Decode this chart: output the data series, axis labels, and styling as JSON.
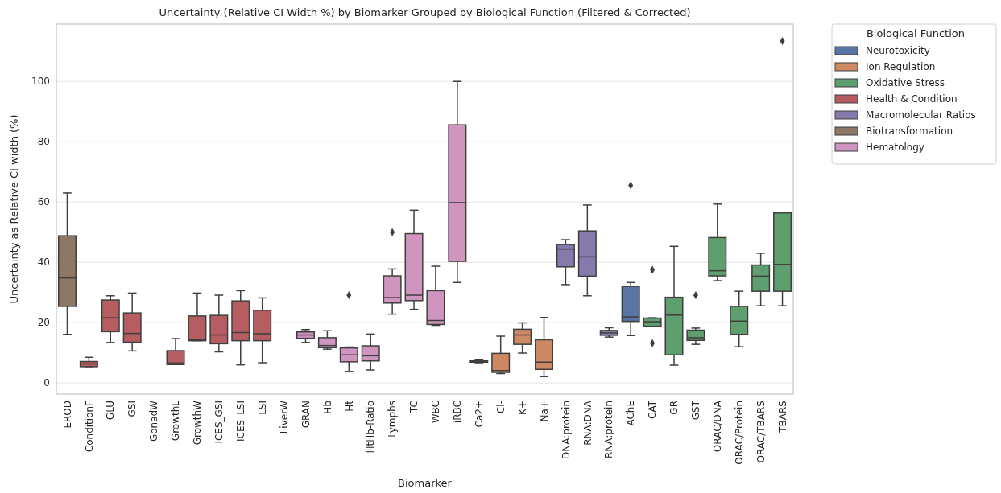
{
  "chart_data": {
    "type": "box",
    "title": "Uncertainty (Relative CI Width %) by Biomarker Grouped by Biological Function (Filtered & Corrected)",
    "xlabel": "Biomarker",
    "ylabel": "Uncertainty as Relative CI width (%)",
    "legend_title": "Biological Function",
    "legend": "top right",
    "grid": "y",
    "marker": "diamond",
    "categories": [
      "EROD",
      "ConditionF",
      "GLU",
      "GSI",
      "GonadW",
      "GrowthL",
      "GrowthW",
      "ICES_GSI",
      "ICES_LSI",
      "LSI",
      "LiverW",
      "GRAN",
      "Hb",
      "Ht",
      "HtHb-Ratio",
      "Lymphs",
      "TC",
      "WBC",
      "iRBC",
      "Ca2+",
      "Cl-",
      "K+",
      "Na+",
      "DNA:protein",
      "RNA:DNA",
      "RNA:protein",
      "AChE",
      "CAT",
      "GR",
      "GST",
      "ORAC/DNA",
      "ORAC/Protein",
      "ORAC/TBARS",
      "TBARS"
    ],
    "ylim": [
      -3.7,
      119
    ],
    "yticks": [
      0,
      20,
      40,
      60,
      80,
      100
    ],
    "series": [
      {
        "name": "Neurotoxicity",
        "color": "#5975a4",
        "boxes": [
          null,
          null,
          null,
          null,
          null,
          null,
          null,
          null,
          null,
          null,
          null,
          null,
          null,
          null,
          null,
          null,
          null,
          null,
          null,
          null,
          null,
          null,
          null,
          null,
          null,
          null,
          {
            "low": 15.7,
            "q1": 20.4,
            "median": 21.9,
            "q3": 32.0,
            "high": 33.3,
            "outliers": [
              65.5
            ]
          },
          null,
          null,
          null,
          null,
          null,
          null,
          null
        ]
      },
      {
        "name": "Ion Regulation",
        "color": "#cc8963",
        "boxes": [
          null,
          null,
          null,
          null,
          null,
          null,
          null,
          null,
          null,
          null,
          null,
          null,
          null,
          null,
          null,
          null,
          null,
          null,
          null,
          {
            "low": 6.7,
            "q1": 6.9,
            "median": 7.1,
            "q3": 7.3,
            "high": 7.6
          },
          {
            "low": 3.1,
            "q1": 3.5,
            "median": 4.1,
            "q3": 9.8,
            "high": 15.5
          },
          {
            "low": 9.9,
            "q1": 12.8,
            "median": 15.9,
            "q3": 17.8,
            "high": 19.9
          },
          {
            "low": 2.1,
            "q1": 4.5,
            "median": 6.9,
            "q3": 14.3,
            "high": 21.7
          },
          null,
          null,
          null,
          null,
          null,
          null,
          null,
          null,
          null,
          null,
          null
        ]
      },
      {
        "name": "Oxidative Stress",
        "color": "#5f9e6e",
        "boxes": [
          null,
          null,
          null,
          null,
          null,
          null,
          null,
          null,
          null,
          null,
          null,
          null,
          null,
          null,
          null,
          null,
          null,
          null,
          null,
          null,
          null,
          null,
          null,
          null,
          null,
          null,
          null,
          {
            "low": 18.8,
            "q1": 18.8,
            "median": 20.3,
            "q3": 21.5,
            "high": 21.6,
            "outliers": [
              37.5,
              13.2
            ]
          },
          {
            "low": 5.9,
            "q1": 9.3,
            "median": 22.5,
            "q3": 28.4,
            "high": 45.3
          },
          {
            "low": 12.8,
            "q1": 14.1,
            "median": 15.0,
            "q3": 17.5,
            "high": 18.2,
            "outliers": [
              29.1
            ]
          },
          {
            "low": 33.9,
            "q1": 35.5,
            "median": 37.2,
            "q3": 48.2,
            "high": 59.3
          },
          {
            "low": 12.0,
            "q1": 16.1,
            "median": 20.5,
            "q3": 25.4,
            "high": 30.4
          },
          {
            "low": 25.6,
            "q1": 30.4,
            "median": 35.4,
            "q3": 39.1,
            "high": 43.0
          },
          {
            "low": 25.6,
            "q1": 30.4,
            "median": 39.3,
            "q3": 56.4,
            "high": 56.4,
            "outliers": [
              113.4
            ]
          }
        ]
      },
      {
        "name": "Health & Condition",
        "color": "#b55d60",
        "boxes": [
          null,
          {
            "low": 5.4,
            "q1": 5.4,
            "median": 6.3,
            "q3": 7.1,
            "high": 8.5
          },
          {
            "low": 13.4,
            "q1": 17.0,
            "median": 21.6,
            "q3": 27.5,
            "high": 28.9
          },
          {
            "low": 10.6,
            "q1": 13.5,
            "median": 16.4,
            "q3": 23.2,
            "high": 29.8
          },
          null,
          {
            "low": 6.1,
            "q1": 6.1,
            "median": 6.6,
            "q3": 10.7,
            "high": 14.7
          },
          {
            "low": 14.0,
            "q1": 14.0,
            "median": 14.3,
            "q3": 22.2,
            "high": 29.8
          },
          {
            "low": 10.3,
            "q1": 13.0,
            "median": 15.9,
            "q3": 22.4,
            "high": 29.1
          },
          {
            "low": 6.0,
            "q1": 14.0,
            "median": 16.7,
            "q3": 27.2,
            "high": 30.6
          },
          {
            "low": 6.7,
            "q1": 14.0,
            "median": 16.3,
            "q3": 24.1,
            "high": 28.2
          },
          null,
          null,
          null,
          null,
          null,
          null,
          null,
          null,
          null,
          null,
          null,
          null,
          null,
          null,
          null,
          null,
          null,
          null,
          null,
          null,
          null,
          null,
          null,
          null
        ]
      },
      {
        "name": "Macromolecular Ratios",
        "color": "#857aab",
        "boxes": [
          null,
          null,
          null,
          null,
          null,
          null,
          null,
          null,
          null,
          null,
          null,
          null,
          null,
          null,
          null,
          null,
          null,
          null,
          null,
          null,
          null,
          null,
          null,
          {
            "low": 32.6,
            "q1": 38.5,
            "median": 44.4,
            "q3": 45.9,
            "high": 47.5
          },
          {
            "low": 28.9,
            "q1": 35.4,
            "median": 41.8,
            "q3": 50.4,
            "high": 59.0
          },
          {
            "low": 15.2,
            "q1": 15.8,
            "median": 16.6,
            "q3": 17.4,
            "high": 18.3
          },
          null,
          null,
          null,
          null,
          null,
          null,
          null,
          null
        ]
      },
      {
        "name": "Biotransformation",
        "color": "#8d7866",
        "boxes": [
          {
            "low": 16.1,
            "q1": 25.4,
            "median": 34.8,
            "q3": 48.8,
            "high": 63.0
          },
          null,
          null,
          null,
          null,
          null,
          null,
          null,
          null,
          null,
          null,
          null,
          null,
          null,
          null,
          null,
          null,
          null,
          null,
          null,
          null,
          null,
          null,
          null,
          null,
          null,
          null,
          null,
          null,
          null,
          null,
          null,
          null,
          null
        ]
      },
      {
        "name": "Hematology",
        "color": "#d095bf",
        "boxes": [
          null,
          null,
          null,
          null,
          null,
          null,
          null,
          null,
          null,
          null,
          null,
          {
            "low": 13.4,
            "q1": 14.8,
            "median": 15.9,
            "q3": 16.9,
            "high": 17.7
          },
          {
            "low": 11.2,
            "q1": 11.7,
            "median": 12.4,
            "q3": 15.0,
            "high": 17.3
          },
          {
            "low": 3.8,
            "q1": 7.0,
            "median": 9.3,
            "q3": 11.6,
            "high": 11.9,
            "outliers": [
              29.1
            ]
          },
          {
            "low": 4.3,
            "q1": 7.3,
            "median": 9.0,
            "q3": 12.3,
            "high": 16.2
          },
          {
            "low": 22.8,
            "q1": 26.5,
            "median": 28.3,
            "q3": 35.5,
            "high": 37.8,
            "outliers": [
              50.0
            ]
          },
          {
            "low": 24.4,
            "q1": 27.3,
            "median": 29.1,
            "q3": 49.5,
            "high": 57.3
          },
          {
            "low": 19.1,
            "q1": 19.4,
            "median": 20.7,
            "q3": 30.6,
            "high": 38.7
          },
          {
            "low": 33.3,
            "q1": 40.3,
            "median": 59.8,
            "q3": 85.6,
            "high": 100
          },
          null,
          null,
          null,
          null,
          null,
          null,
          null,
          null,
          null,
          null,
          null,
          null,
          null,
          null,
          null
        ]
      }
    ]
  }
}
